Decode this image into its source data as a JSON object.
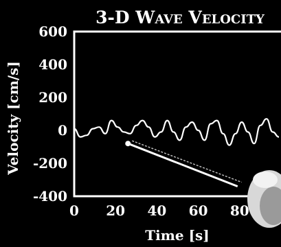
{
  "chart_data": {
    "type": "line",
    "title": "3-D Wave Velocity",
    "xlabel": "Time [s]",
    "ylabel": "Velocity [cm/s]",
    "xlim": [
      0,
      100
    ],
    "ylim": [
      -400,
      600
    ],
    "x_ticks": [
      0,
      20,
      40,
      60,
      80
    ],
    "y_ticks": [
      600,
      400,
      200,
      0,
      -200,
      -400
    ],
    "grid": false,
    "series": [
      {
        "color": "#ffffff",
        "x": [
          0,
          3,
          6,
          9,
          12,
          15,
          18,
          21,
          24,
          27,
          30,
          33,
          36,
          39,
          42,
          45,
          48,
          51,
          54,
          57,
          60,
          63,
          66,
          69,
          72,
          75,
          78,
          81,
          84,
          87,
          90,
          93,
          96,
          99
        ],
        "y": [
          10,
          -40,
          -30,
          10,
          20,
          -20,
          60,
          20,
          -10,
          -20,
          30,
          60,
          20,
          -40,
          -10,
          60,
          -10,
          -60,
          20,
          50,
          0,
          -60,
          40,
          60,
          -20,
          -90,
          -20,
          50,
          -10,
          -80,
          30,
          70,
          -10,
          -40
        ]
      }
    ],
    "annotation_arrow": {
      "from": {
        "x": 26,
        "y": -80
      },
      "to": {
        "x": 79,
        "y": -340
      }
    }
  }
}
